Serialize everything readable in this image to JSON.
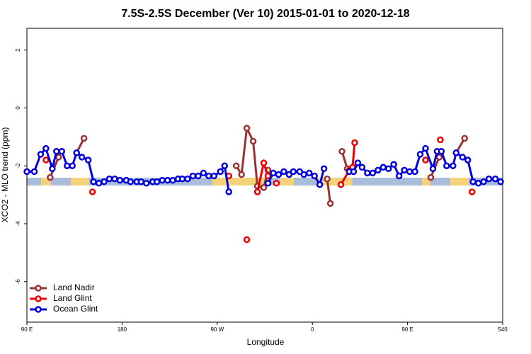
{
  "chart_data": {
    "type": "line",
    "title": "7.5S-2.5S December (Ver 10)   2015-01-01 to 2020-12-18",
    "xlabel": "Longitude",
    "ylabel": "XCO2 - MLO trend (ppm)",
    "xlim": [
      90,
      540
    ],
    "xticks": [
      {
        "value": 90,
        "label": "90 E"
      },
      180,
      {
        "value": 270,
        "label": "90 W"
      },
      {
        "value": 360,
        "label": "0"
      },
      {
        "value": 450,
        "label": "90 E"
      },
      540
    ],
    "ylim": [
      -7.4,
      2.75
    ],
    "yticks": [
      -6,
      -4,
      -2,
      0,
      2
    ],
    "legend": "bottom-left",
    "series": [
      {
        "name": "Land Nadir",
        "color": "#993333",
        "x": [
          112,
          120,
          128,
          137,
          144,
          200,
          288,
          293,
          298,
          304,
          308,
          314,
          318,
          350,
          374,
          377,
          382,
          388,
          393,
          430,
          472,
          480,
          488,
          496,
          504
        ],
        "values": [
          -2.4,
          -1.7,
          null,
          -1.55,
          -1.05,
          null,
          -2.0,
          -2.3,
          -0.7,
          -1.15,
          -2.7,
          -2.75,
          -2.15,
          null,
          -2.45,
          -3.3,
          null,
          -1.5,
          -2.1,
          null,
          -2.4,
          -1.7,
          null,
          -1.55,
          -1.05
        ]
      },
      {
        "name": "Land Glint",
        "color": "#ee0000",
        "x": [
          108,
          121,
          140,
          152,
          220,
          281,
          290,
          298,
          303,
          308,
          314,
          318,
          322,
          326,
          350,
          387,
          395,
          398,
          400,
          430,
          467,
          474,
          481,
          495,
          511
        ],
        "values": [
          -1.8,
          null,
          null,
          -2.9,
          null,
          -2.35,
          null,
          -4.55,
          null,
          -2.9,
          -1.9,
          -2.35,
          null,
          -2.6,
          null,
          -2.65,
          -2.15,
          -2.05,
          -1.2,
          null,
          -1.8,
          null,
          -1.1,
          null,
          -2.9
        ]
      },
      {
        "name": "Ocean Glint",
        "color": "#0000dd",
        "x": [
          90,
          97,
          103,
          108,
          114,
          118,
          123,
          128,
          133,
          137,
          142,
          148,
          153,
          158,
          163,
          168,
          173,
          178,
          184,
          188,
          194,
          198,
          203,
          209,
          213,
          218,
          223,
          228,
          233,
          237,
          242,
          247,
          252,
          257,
          262,
          267,
          273,
          277,
          281,
          299,
          318,
          323,
          328,
          333,
          338,
          342,
          348,
          352,
          357,
          362,
          367,
          371,
          383,
          395,
          399,
          403,
          407,
          412,
          417,
          422,
          427,
          432,
          437,
          442,
          447,
          452,
          457,
          462,
          467,
          474,
          478,
          482,
          487,
          493,
          496,
          502,
          507,
          512,
          517,
          522,
          527,
          533,
          538
        ],
        "values": [
          -2.2,
          -2.2,
          -1.6,
          -1.4,
          -2.1,
          -1.5,
          -1.5,
          -2.0,
          -2.0,
          -1.55,
          -1.7,
          -1.8,
          -2.55,
          -2.6,
          -2.55,
          -2.45,
          -2.45,
          -2.5,
          -2.5,
          -2.55,
          -2.55,
          -2.55,
          -2.6,
          -2.55,
          -2.55,
          -2.5,
          -2.5,
          -2.5,
          -2.45,
          -2.45,
          -2.45,
          -2.35,
          -2.35,
          -2.25,
          -2.35,
          -2.35,
          -2.2,
          -2.0,
          -2.9,
          null,
          -2.6,
          -2.25,
          -2.3,
          -2.2,
          -2.3,
          -2.2,
          -2.2,
          -2.3,
          -2.25,
          -2.35,
          -2.65,
          -2.1,
          null,
          -2.2,
          -2.2,
          -1.9,
          -2.05,
          -2.25,
          -2.25,
          -2.15,
          -2.05,
          -2.1,
          -1.95,
          -2.35,
          -2.15,
          -2.2,
          -2.2,
          -1.6,
          -1.4,
          -2.1,
          -1.5,
          -1.5,
          -2.0,
          -2.0,
          -1.55,
          -1.7,
          -1.8,
          -2.55,
          -2.6,
          -2.55,
          -2.45,
          -2.45,
          -2.55
        ]
      }
    ]
  }
}
